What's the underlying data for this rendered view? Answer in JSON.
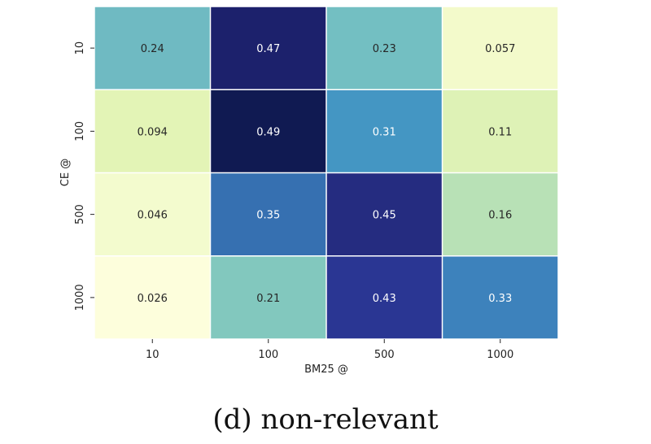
{
  "chart_data": {
    "type": "heatmap",
    "xlabel": "BM25 @",
    "ylabel": "CE @",
    "x_categories": [
      "10",
      "100",
      "500",
      "1000"
    ],
    "y_categories": [
      "10",
      "100",
      "500",
      "1000"
    ],
    "values": [
      [
        0.24,
        0.47,
        0.23,
        0.057
      ],
      [
        0.094,
        0.49,
        0.31,
        0.11
      ],
      [
        0.046,
        0.35,
        0.45,
        0.16
      ],
      [
        0.026,
        0.21,
        0.43,
        0.33
      ]
    ],
    "value_labels": [
      [
        "0.24",
        "0.47",
        "0.23",
        "0.057"
      ],
      [
        "0.094",
        "0.49",
        "0.31",
        "0.11"
      ],
      [
        "0.046",
        "0.35",
        "0.45",
        "0.16"
      ],
      [
        "0.026",
        "0.21",
        "0.43",
        "0.33"
      ]
    ],
    "colormap": "YlGnBu",
    "cell_colors": [
      [
        "#6fbac2",
        "#1c216c",
        "#73bfc2",
        "#f3facb"
      ],
      [
        "#e3f4b6",
        "#101a52",
        "#4496c3",
        "#def2b6"
      ],
      [
        "#f3fbce",
        "#3670b1",
        "#252c80",
        "#b8e1b6"
      ],
      [
        "#fdfedc",
        "#82c8be",
        "#2a3693",
        "#3d82bc"
      ]
    ],
    "light_text_color": "#ffffff",
    "dark_text_color": "#262626",
    "grid_line_color": "#ffffff"
  },
  "caption": "(d) non-relevant"
}
